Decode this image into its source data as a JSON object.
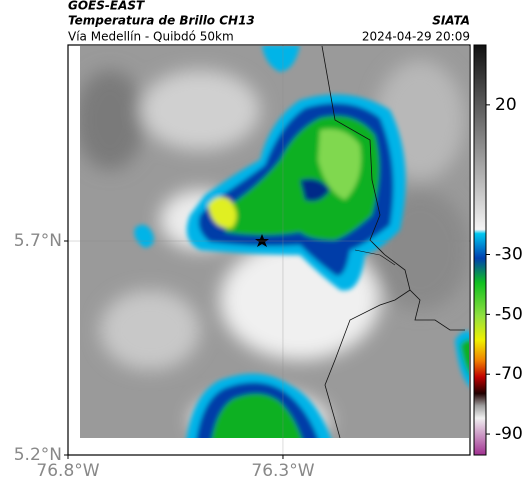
{
  "header": {
    "title": "GOES-EAST",
    "subtitle": "Temperatura de Brillo CH13",
    "region": "Vía Medellín - Quibdó 50km",
    "source": "SIATA",
    "datetime": "2024-04-29 20:09"
  },
  "map": {
    "xlim": [
      -76.8,
      -75.865
    ],
    "ylim": [
      5.2,
      6.158
    ],
    "xticks": [
      {
        "value": -76.8,
        "label": "76.8°W"
      },
      {
        "value": -76.3,
        "label": "76.3°W"
      }
    ],
    "yticks": [
      {
        "value": 5.7,
        "label": "5.7°N"
      },
      {
        "value": 5.2,
        "label": "5.2°N"
      }
    ],
    "grid": true
  },
  "colorbar": {
    "lim": [
      -97,
      40
    ],
    "ticks": [
      20,
      -30,
      -50,
      -70,
      -90
    ]
  }
}
